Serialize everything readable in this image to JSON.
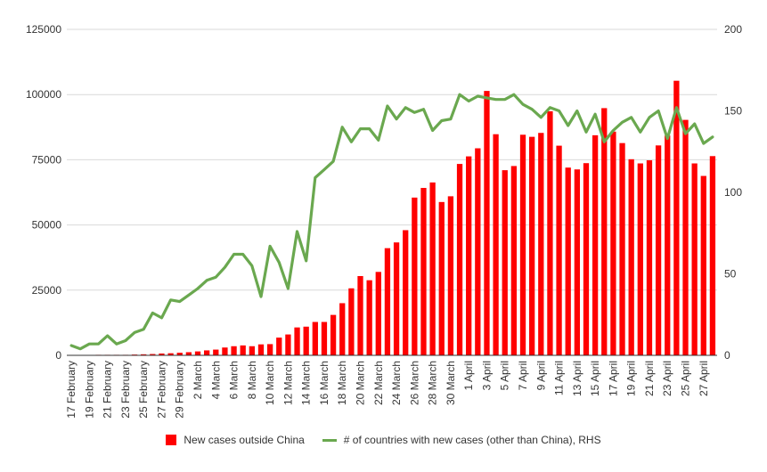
{
  "chart_data": {
    "type": "bar+line",
    "title": "",
    "xlabel": "",
    "ylabel": "",
    "ylim_left": [
      0,
      125000
    ],
    "yticks_left": [
      0,
      25000,
      50000,
      75000,
      100000,
      125000
    ],
    "ylim_right": [
      0,
      200
    ],
    "yticks_right": [
      0,
      50,
      100,
      150,
      200
    ],
    "grid": true,
    "legend_position": "bottom",
    "categories": [
      "17 February",
      "18 February",
      "19 February",
      "20 February",
      "21 February",
      "22 February",
      "23 February",
      "24 February",
      "25 February",
      "26 February",
      "27 February",
      "28 February",
      "29 February",
      "1 March",
      "2 March",
      "3 March",
      "4 March",
      "5 March",
      "6 March",
      "7 March",
      "8 March",
      "9 March",
      "10 March",
      "11 March",
      "12 March",
      "13 March",
      "14 March",
      "15 March",
      "16 March",
      "17 March",
      "18 March",
      "19 March",
      "20 March",
      "21 March",
      "22 March",
      "23 March",
      "24 March",
      "25 March",
      "26 March",
      "27 March",
      "28 March",
      "29 March",
      "30 March",
      "31 March",
      "1 April",
      "2 April",
      "3 April",
      "4 April",
      "5 April",
      "6 April",
      "7 April",
      "8 April",
      "9 April",
      "10 April",
      "11 April",
      "12 April",
      "13 April",
      "14 April",
      "15 April",
      "16 April",
      "17 April",
      "18 April",
      "19 April",
      "20 April",
      "21 April",
      "22 April",
      "23 April",
      "24 April",
      "25 April",
      "26 April",
      "27 April",
      "28 April"
    ],
    "x_tick_labels": [
      "17 February",
      "19 February",
      "21 February",
      "23 February",
      "25 February",
      "27 February",
      "29 February",
      "2 March",
      "4 March",
      "6 March",
      "8 March",
      "10 March",
      "12 March",
      "14 March",
      "16 March",
      "18 March",
      "20 March",
      "22 March",
      "24 March",
      "26 March",
      "28 March",
      "30 March",
      "1 April",
      "3 April",
      "5 April",
      "7 April",
      "9 April",
      "11 April",
      "13 April",
      "15 April",
      "17 April",
      "19 April",
      "21 April",
      "23 April",
      "25 April",
      "27 April"
    ],
    "series": [
      {
        "name": "New cases outside China",
        "axis": "left",
        "kind": "bar",
        "color": "#ff0000",
        "values": [
          100,
          100,
          100,
          200,
          200,
          200,
          200,
          300,
          400,
          500,
          700,
          800,
          1000,
          1200,
          1500,
          1900,
          2200,
          3000,
          3500,
          3800,
          3500,
          4200,
          4300,
          6800,
          8000,
          10700,
          11000,
          12800,
          12800,
          15500,
          20000,
          25700,
          30400,
          28800,
          32000,
          41100,
          43300,
          48000,
          60500,
          64200,
          66300,
          58800,
          61000,
          73400,
          76300,
          79400,
          101400,
          84800,
          71000,
          72600,
          84600,
          83800,
          85300,
          93600,
          80400,
          72000,
          71300,
          73700,
          84400,
          94800,
          85800,
          81400,
          75200,
          73600,
          74800,
          80500,
          84300,
          105300,
          90300,
          73600,
          68800,
          76400
        ]
      },
      {
        "name": "# of countries with new cases (other than China), RHS",
        "axis": "right",
        "kind": "line",
        "color": "#6aa84f",
        "values": [
          6,
          4,
          7,
          7,
          12,
          7,
          9,
          14,
          16,
          26,
          23,
          34,
          33,
          37,
          41,
          46,
          48,
          54,
          62,
          62,
          55,
          36,
          67,
          57,
          41,
          76,
          58,
          109,
          114,
          119,
          140,
          131,
          139,
          139,
          132,
          153,
          145,
          152,
          149,
          151,
          138,
          144,
          145,
          160,
          156,
          159,
          158,
          157,
          157,
          160,
          154,
          151,
          146,
          152,
          150,
          141,
          150,
          137,
          148,
          131,
          138,
          143,
          146,
          137,
          146,
          150,
          133,
          152,
          136,
          142,
          130,
          134
        ]
      }
    ]
  }
}
